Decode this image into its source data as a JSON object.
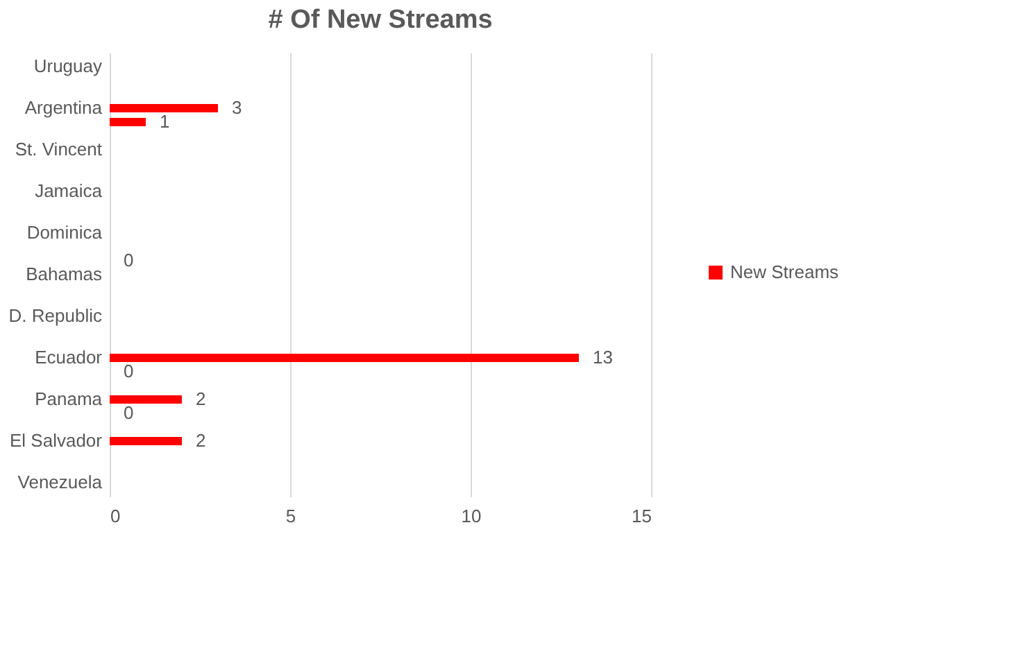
{
  "chart_data": {
    "type": "bar",
    "orientation": "horizontal",
    "title": "# Of New Streams",
    "categories": [
      "Uruguay",
      null,
      null,
      "Argentina",
      null,
      null,
      "St. Vincent",
      null,
      null,
      "Jamaica",
      null,
      null,
      "Dominica",
      null,
      null,
      "Bahamas",
      null,
      null,
      "D. Republic",
      null,
      null,
      "Ecuador",
      null,
      null,
      "Panama",
      null,
      null,
      "El Salvador",
      null,
      null,
      "Venezuela"
    ],
    "series": [
      {
        "name": "New Streams",
        "color": "#ff0000",
        "values": [
          null,
          null,
          null,
          3,
          1,
          null,
          null,
          null,
          null,
          null,
          null,
          null,
          null,
          null,
          0,
          null,
          null,
          null,
          null,
          null,
          null,
          13,
          0,
          null,
          2,
          0,
          null,
          2,
          null,
          null,
          null
        ]
      }
    ],
    "xlim": [
      0,
      15
    ],
    "xticks": [
      0,
      5,
      10,
      15
    ],
    "grid": "x",
    "legend": "right",
    "data_labels": true
  }
}
